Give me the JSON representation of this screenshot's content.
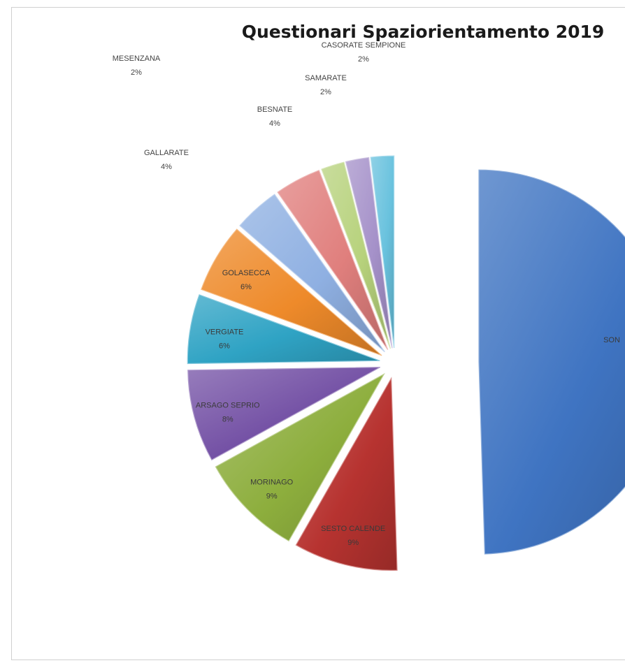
{
  "chart_data": {
    "type": "pie",
    "title": "Questionari Spaziorientamento 2019",
    "categories": [
      "SOMMA LOMBARDO",
      "SESTO CALENDE",
      "MORNAGO",
      "ARSAGO SEPRIO",
      "VERGIATE",
      "GOLASECCA",
      "GALLARATE",
      "BESNATE",
      "SAMARATE",
      "CASORATE SEMPIONE",
      "MESENZANA"
    ],
    "values": [
      51,
      9,
      9,
      8,
      6,
      6,
      4,
      4,
      2,
      2,
      2
    ],
    "slices": [
      {
        "name": "SON",
        "label": "SON",
        "value": 51,
        "percent": "",
        "color": "#3f74c2",
        "label_inside": true
      },
      {
        "name": "SESTO CALENDE",
        "label": "SESTO CALENDE",
        "value": 9,
        "percent": "9%",
        "color": "#b73330",
        "label_inside": true
      },
      {
        "name": "MORNAGO",
        "label": "MORINAGO",
        "value": 9,
        "percent": "9%",
        "color": "#8dae3d",
        "label_inside": true
      },
      {
        "name": "ARSAGO SEPRIO",
        "label": "ARSAGO SEPRIO",
        "value": 8,
        "percent": "8%",
        "color": "#7451a5",
        "label_inside": true
      },
      {
        "name": "VERGIATE",
        "label": "VERGIATE",
        "value": 6,
        "percent": "6%",
        "color": "#2fa3c4",
        "label_inside": true
      },
      {
        "name": "GOLASECCA",
        "label": "GOLASECCA",
        "value": 6,
        "percent": "6%",
        "color": "#ee8a2a",
        "label_inside": true
      },
      {
        "name": "GALLARATE",
        "label": "GALLARATE",
        "value": 4,
        "percent": "4%",
        "color": "#8fb0e2",
        "label_inside": false
      },
      {
        "name": "BESNATE",
        "label": "BESNATE",
        "value": 4,
        "percent": "4%",
        "color": "#e07f7d",
        "label_inside": false
      },
      {
        "name": "SAMARATE",
        "label": "SAMARATE",
        "value": 2,
        "percent": "2%",
        "color": "#b7d27c",
        "label_inside": false
      },
      {
        "name": "CASORATE SEMPIONE",
        "label": "CASORATE SEMPIONE",
        "value": 2,
        "percent": "2%",
        "color": "#a591c9",
        "label_inside": false
      },
      {
        "name": "MESENZANA",
        "label": "MESENZANA",
        "value": 2,
        "percent": "2%",
        "color": "#69c2de",
        "label_inside": false
      }
    ],
    "legend": "none",
    "exploded": true
  }
}
